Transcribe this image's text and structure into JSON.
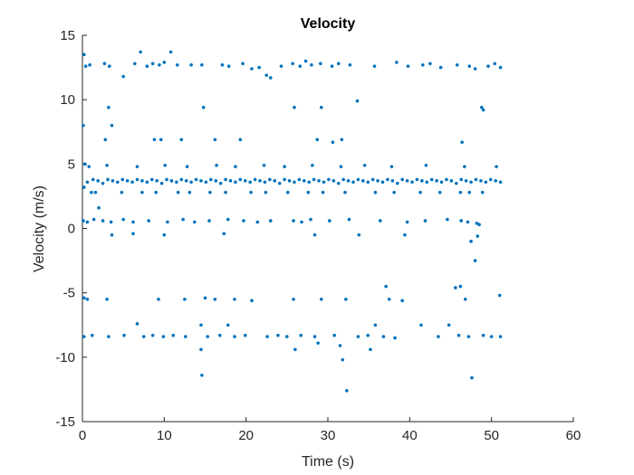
{
  "chart_data": {
    "type": "scatter",
    "title": "Velocity",
    "xlabel": "Time (s)",
    "ylabel": "Velocity (m/s)",
    "xlim": [
      0,
      60
    ],
    "ylim": [
      -15,
      15
    ],
    "xticks": [
      0,
      10,
      20,
      30,
      40,
      50,
      60
    ],
    "yticks": [
      -15,
      -10,
      -5,
      0,
      5,
      10,
      15
    ],
    "grid": false,
    "legend": "none",
    "marker_color": "#0072BD",
    "axis_color": "#262626",
    "series": [
      {
        "points": [
          [
            0.2,
            13.5
          ],
          [
            0.4,
            12.6
          ],
          [
            0.9,
            12.7
          ],
          [
            2.7,
            12.8
          ],
          [
            3.3,
            12.6
          ],
          [
            5.0,
            11.8
          ],
          [
            6.4,
            12.8
          ],
          [
            7.1,
            13.7
          ],
          [
            7.9,
            12.6
          ],
          [
            8.6,
            12.8
          ],
          [
            9.4,
            12.7
          ],
          [
            10.0,
            12.9
          ],
          [
            10.8,
            13.7
          ],
          [
            11.6,
            12.7
          ],
          [
            13.3,
            12.7
          ],
          [
            14.6,
            12.7
          ],
          [
            17.1,
            12.7
          ],
          [
            17.9,
            12.6
          ],
          [
            19.6,
            12.8
          ],
          [
            20.7,
            12.4
          ],
          [
            21.6,
            12.5
          ],
          [
            22.5,
            11.9
          ],
          [
            23.0,
            11.7
          ],
          [
            24.3,
            12.6
          ],
          [
            25.7,
            12.8
          ],
          [
            26.6,
            12.6
          ],
          [
            27.3,
            13.0
          ],
          [
            28.0,
            12.7
          ],
          [
            29.1,
            12.8
          ],
          [
            30.5,
            12.6
          ],
          [
            31.3,
            12.8
          ],
          [
            32.7,
            12.7
          ],
          [
            35.7,
            12.6
          ],
          [
            38.4,
            12.9
          ],
          [
            39.8,
            12.6
          ],
          [
            41.6,
            12.7
          ],
          [
            42.5,
            12.8
          ],
          [
            43.8,
            12.5
          ],
          [
            45.8,
            12.7
          ],
          [
            47.3,
            12.6
          ],
          [
            48.0,
            12.4
          ],
          [
            49.6,
            12.6
          ],
          [
            50.4,
            12.8
          ],
          [
            51.1,
            12.5
          ],
          [
            3.2,
            9.4
          ],
          [
            3.6,
            8.0
          ],
          [
            14.8,
            9.4
          ],
          [
            25.9,
            9.4
          ],
          [
            29.2,
            9.4
          ],
          [
            33.6,
            9.9
          ],
          [
            48.8,
            9.4
          ],
          [
            49.0,
            9.2
          ],
          [
            0.1,
            8.0
          ],
          [
            2.8,
            6.9
          ],
          [
            8.8,
            6.9
          ],
          [
            9.6,
            6.9
          ],
          [
            12.1,
            6.9
          ],
          [
            16.2,
            6.9
          ],
          [
            19.3,
            6.9
          ],
          [
            28.7,
            6.9
          ],
          [
            30.6,
            6.7
          ],
          [
            31.7,
            6.9
          ],
          [
            46.4,
            6.7
          ],
          [
            0.3,
            5.0
          ],
          [
            0.8,
            4.8
          ],
          [
            3.0,
            4.9
          ],
          [
            6.7,
            4.8
          ],
          [
            10.1,
            4.9
          ],
          [
            12.8,
            4.8
          ],
          [
            16.4,
            4.9
          ],
          [
            18.7,
            4.8
          ],
          [
            22.2,
            4.9
          ],
          [
            24.7,
            4.8
          ],
          [
            28.1,
            4.9
          ],
          [
            31.6,
            4.8
          ],
          [
            34.5,
            4.9
          ],
          [
            37.8,
            4.8
          ],
          [
            42.0,
            4.9
          ],
          [
            46.7,
            4.8
          ],
          [
            50.6,
            4.8
          ],
          [
            0.6,
            3.6
          ],
          [
            1.3,
            3.8
          ],
          [
            1.9,
            3.7
          ],
          [
            2.5,
            3.5
          ],
          [
            3.1,
            3.8
          ],
          [
            3.7,
            3.7
          ],
          [
            4.3,
            3.6
          ],
          [
            4.9,
            3.8
          ],
          [
            5.5,
            3.7
          ],
          [
            6.1,
            3.6
          ],
          [
            6.7,
            3.8
          ],
          [
            7.3,
            3.7
          ],
          [
            7.9,
            3.6
          ],
          [
            8.5,
            3.8
          ],
          [
            9.1,
            3.7
          ],
          [
            9.7,
            3.5
          ],
          [
            10.3,
            3.8
          ],
          [
            10.9,
            3.7
          ],
          [
            11.5,
            3.6
          ],
          [
            12.1,
            3.8
          ],
          [
            12.7,
            3.7
          ],
          [
            13.3,
            3.6
          ],
          [
            13.9,
            3.8
          ],
          [
            14.5,
            3.7
          ],
          [
            15.1,
            3.6
          ],
          [
            15.7,
            3.8
          ],
          [
            16.3,
            3.7
          ],
          [
            16.9,
            3.5
          ],
          [
            17.5,
            3.8
          ],
          [
            18.1,
            3.7
          ],
          [
            18.7,
            3.6
          ],
          [
            19.3,
            3.8
          ],
          [
            19.9,
            3.7
          ],
          [
            20.5,
            3.6
          ],
          [
            21.1,
            3.8
          ],
          [
            21.7,
            3.7
          ],
          [
            22.3,
            3.6
          ],
          [
            22.9,
            3.8
          ],
          [
            23.5,
            3.7
          ],
          [
            24.1,
            3.5
          ],
          [
            24.7,
            3.8
          ],
          [
            25.3,
            3.7
          ],
          [
            25.9,
            3.6
          ],
          [
            26.5,
            3.8
          ],
          [
            27.1,
            3.7
          ],
          [
            27.7,
            3.6
          ],
          [
            28.3,
            3.8
          ],
          [
            28.9,
            3.7
          ],
          [
            29.5,
            3.6
          ],
          [
            30.1,
            3.8
          ],
          [
            30.7,
            3.7
          ],
          [
            31.3,
            3.5
          ],
          [
            31.9,
            3.8
          ],
          [
            32.5,
            3.7
          ],
          [
            33.1,
            3.6
          ],
          [
            33.7,
            3.8
          ],
          [
            34.3,
            3.7
          ],
          [
            34.9,
            3.6
          ],
          [
            35.5,
            3.8
          ],
          [
            36.1,
            3.7
          ],
          [
            36.7,
            3.6
          ],
          [
            37.3,
            3.8
          ],
          [
            37.9,
            3.7
          ],
          [
            38.5,
            3.5
          ],
          [
            39.1,
            3.8
          ],
          [
            39.7,
            3.7
          ],
          [
            40.3,
            3.6
          ],
          [
            40.9,
            3.8
          ],
          [
            41.5,
            3.7
          ],
          [
            42.1,
            3.6
          ],
          [
            42.7,
            3.8
          ],
          [
            43.3,
            3.7
          ],
          [
            43.9,
            3.6
          ],
          [
            44.5,
            3.8
          ],
          [
            45.1,
            3.7
          ],
          [
            45.7,
            3.5
          ],
          [
            46.3,
            3.8
          ],
          [
            46.9,
            3.7
          ],
          [
            47.5,
            3.6
          ],
          [
            48.1,
            3.8
          ],
          [
            48.7,
            3.7
          ],
          [
            49.3,
            3.6
          ],
          [
            49.9,
            3.8
          ],
          [
            50.5,
            3.7
          ],
          [
            51.1,
            3.6
          ],
          [
            0.2,
            3.2
          ],
          [
            1.1,
            2.8
          ],
          [
            1.6,
            2.8
          ],
          [
            2.0,
            1.6
          ],
          [
            4.8,
            2.8
          ],
          [
            7.3,
            2.8
          ],
          [
            9.0,
            2.8
          ],
          [
            11.7,
            2.8
          ],
          [
            13.1,
            2.8
          ],
          [
            15.6,
            2.8
          ],
          [
            17.5,
            2.8
          ],
          [
            20.6,
            2.8
          ],
          [
            22.4,
            2.8
          ],
          [
            25.1,
            2.8
          ],
          [
            27.6,
            2.8
          ],
          [
            29.4,
            2.8
          ],
          [
            32.1,
            2.8
          ],
          [
            35.8,
            2.8
          ],
          [
            38.1,
            2.8
          ],
          [
            41.3,
            2.8
          ],
          [
            43.7,
            2.8
          ],
          [
            46.2,
            2.8
          ],
          [
            47.3,
            2.8
          ],
          [
            48.9,
            2.8
          ],
          [
            0.1,
            0.6
          ],
          [
            0.6,
            0.5
          ],
          [
            1.4,
            0.7
          ],
          [
            2.5,
            0.6
          ],
          [
            3.5,
            0.5
          ],
          [
            5.0,
            0.7
          ],
          [
            6.2,
            0.5
          ],
          [
            8.1,
            0.6
          ],
          [
            10.4,
            0.5
          ],
          [
            12.3,
            0.7
          ],
          [
            13.7,
            0.5
          ],
          [
            15.5,
            0.6
          ],
          [
            17.8,
            0.7
          ],
          [
            19.7,
            0.6
          ],
          [
            21.4,
            0.5
          ],
          [
            23.0,
            0.6
          ],
          [
            25.8,
            0.6
          ],
          [
            26.8,
            0.5
          ],
          [
            27.9,
            0.7
          ],
          [
            30.2,
            0.6
          ],
          [
            32.6,
            0.7
          ],
          [
            36.4,
            0.6
          ],
          [
            39.7,
            0.5
          ],
          [
            41.9,
            0.6
          ],
          [
            44.6,
            0.7
          ],
          [
            46.3,
            0.6
          ],
          [
            47.1,
            0.5
          ],
          [
            48.2,
            0.4
          ],
          [
            48.5,
            0.3
          ],
          [
            3.6,
            -0.5
          ],
          [
            6.2,
            -0.4
          ],
          [
            10.0,
            -0.5
          ],
          [
            17.3,
            -0.4
          ],
          [
            28.4,
            -0.5
          ],
          [
            33.8,
            -0.5
          ],
          [
            39.4,
            -0.5
          ],
          [
            48.3,
            -0.6
          ],
          [
            47.5,
            -1.0
          ],
          [
            48.0,
            -2.5
          ],
          [
            0.2,
            -5.4
          ],
          [
            0.6,
            -5.5
          ],
          [
            3.0,
            -5.5
          ],
          [
            9.3,
            -5.5
          ],
          [
            12.5,
            -5.5
          ],
          [
            15.0,
            -5.4
          ],
          [
            16.2,
            -5.5
          ],
          [
            18.6,
            -5.5
          ],
          [
            20.7,
            -5.6
          ],
          [
            25.8,
            -5.5
          ],
          [
            29.2,
            -5.5
          ],
          [
            32.2,
            -5.5
          ],
          [
            37.1,
            -4.5
          ],
          [
            37.5,
            -5.5
          ],
          [
            39.1,
            -5.6
          ],
          [
            45.6,
            -4.6
          ],
          [
            46.2,
            -4.5
          ],
          [
            46.8,
            -5.5
          ],
          [
            51.0,
            -5.2
          ],
          [
            0.2,
            -8.4
          ],
          [
            1.2,
            -8.3
          ],
          [
            3.2,
            -8.4
          ],
          [
            5.1,
            -8.3
          ],
          [
            6.7,
            -7.4
          ],
          [
            7.5,
            -8.4
          ],
          [
            8.6,
            -8.3
          ],
          [
            9.9,
            -8.4
          ],
          [
            11.1,
            -8.3
          ],
          [
            12.6,
            -8.4
          ],
          [
            14.5,
            -7.5
          ],
          [
            15.3,
            -8.4
          ],
          [
            16.8,
            -8.3
          ],
          [
            17.8,
            -7.5
          ],
          [
            18.6,
            -8.4
          ],
          [
            19.9,
            -8.3
          ],
          [
            22.6,
            -8.4
          ],
          [
            23.9,
            -8.3
          ],
          [
            25.0,
            -8.4
          ],
          [
            26.7,
            -8.3
          ],
          [
            28.4,
            -8.4
          ],
          [
            30.8,
            -8.3
          ],
          [
            33.7,
            -8.4
          ],
          [
            34.9,
            -8.3
          ],
          [
            35.8,
            -7.5
          ],
          [
            36.8,
            -8.4
          ],
          [
            38.2,
            -8.5
          ],
          [
            41.4,
            -7.5
          ],
          [
            43.5,
            -8.4
          ],
          [
            44.8,
            -7.5
          ],
          [
            46.0,
            -8.3
          ],
          [
            47.2,
            -8.4
          ],
          [
            49.0,
            -8.3
          ],
          [
            50.0,
            -8.4
          ],
          [
            51.1,
            -8.4
          ],
          [
            14.5,
            -9.4
          ],
          [
            26.0,
            -9.4
          ],
          [
            28.8,
            -8.9
          ],
          [
            31.5,
            -9.1
          ],
          [
            35.2,
            -9.4
          ],
          [
            14.6,
            -11.4
          ],
          [
            31.8,
            -10.2
          ],
          [
            47.6,
            -11.6
          ],
          [
            32.3,
            -12.6
          ]
        ]
      }
    ]
  }
}
